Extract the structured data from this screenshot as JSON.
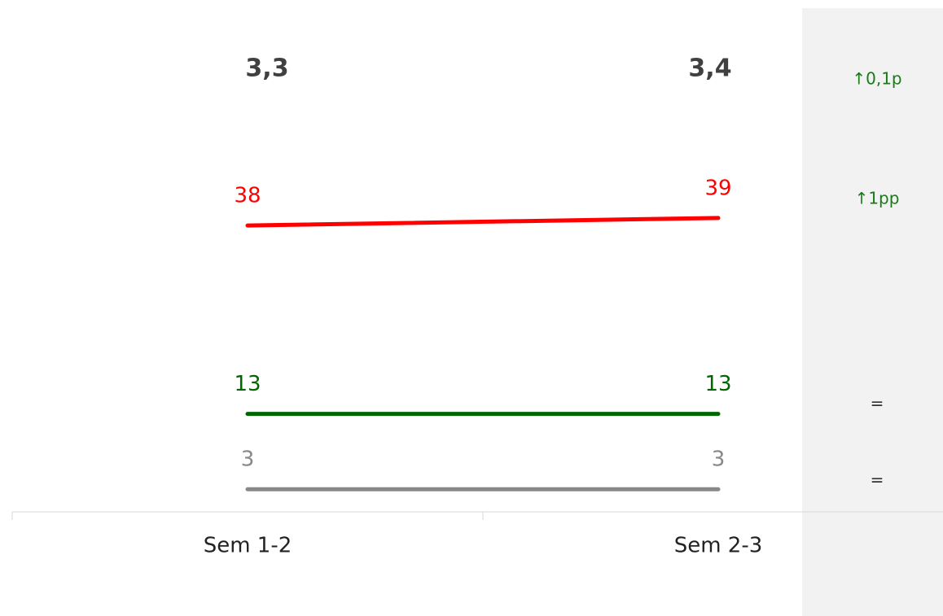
{
  "chart_data": {
    "type": "line",
    "categories": [
      "Sem 1-2",
      "Sem 2-3"
    ],
    "summary": [
      "3,3",
      "3,4"
    ],
    "series": [
      {
        "color": "#ff0000",
        "values": [
          38,
          39
        ]
      },
      {
        "color": "#006600",
        "values": [
          13,
          13
        ]
      },
      {
        "color": "#888888",
        "values": [
          3,
          3
        ]
      }
    ],
    "ylim": [
      0,
      50
    ],
    "changes": [
      {
        "label": "↑0,1p",
        "color": "#1a7a1a"
      },
      {
        "label": "↑1pp",
        "color": "#1a7a1a"
      },
      {
        "label": "=",
        "color": "#333333"
      },
      {
        "label": "=",
        "color": "#333333"
      }
    ]
  }
}
